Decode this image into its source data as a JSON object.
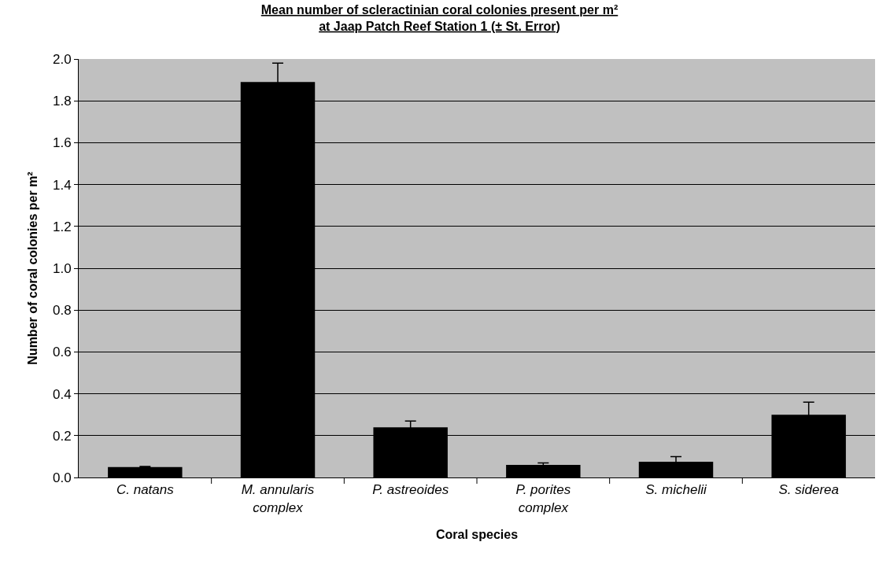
{
  "chart_data": {
    "type": "bar",
    "title": "Mean number of scleractinian coral colonies present per m²\nat Jaap Patch Reef Station 1 (± St. Error)",
    "xlabel": "Coral species",
    "ylabel": "Number of coral colonies per m²",
    "categories": [
      "C. natans",
      "M. annularis\ncomplex",
      "P. astreoides",
      "P. porites\ncomplex",
      "S. michelii",
      "S. siderea"
    ],
    "values": [
      0.05,
      1.89,
      0.24,
      0.06,
      0.075,
      0.3
    ],
    "errors": [
      0.003,
      0.09,
      0.03,
      0.01,
      0.025,
      0.06
    ],
    "color": "#000000",
    "ylim": [
      0,
      2.0
    ],
    "yticks": [
      {
        "value": 0,
        "label": "0.0"
      },
      {
        "value": 0.2,
        "label": "0.2"
      },
      {
        "value": 0.4,
        "label": "0.4"
      },
      {
        "value": 0.6,
        "label": "0.6"
      },
      {
        "value": 0.8,
        "label": "0.8"
      },
      {
        "value": 1.0,
        "label": "1.0"
      },
      {
        "value": 1.2,
        "label": "1.2"
      },
      {
        "value": 1.4,
        "label": "1.4"
      },
      {
        "value": 1.6,
        "label": "1.6"
      },
      {
        "value": 1.8,
        "label": "1.8"
      },
      {
        "value": 2.0,
        "label": "2.0"
      }
    ],
    "grid": "y",
    "legend": false
  }
}
